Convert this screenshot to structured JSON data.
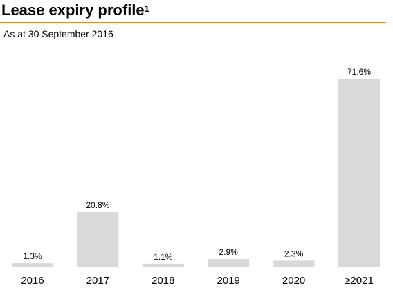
{
  "header": {
    "title": "Lease expiry profile",
    "footnote_marker": "1",
    "subtitle": "As at 30 September 2016",
    "rule_color": "#d98a3a"
  },
  "chart_data": {
    "type": "bar",
    "title": "Lease expiry profile",
    "subtitle": "As at 30 September 2016",
    "categories": [
      "2016",
      "2017",
      "2018",
      "2019",
      "2020",
      "≥2021"
    ],
    "values": [
      1.3,
      20.8,
      1.1,
      2.9,
      2.3,
      71.6
    ],
    "data_labels": [
      "1.3%",
      "20.8%",
      "1.1%",
      "2.9%",
      "2.3%",
      "71.6%"
    ],
    "unit": "%",
    "xlabel": "",
    "ylabel": "",
    "ylim": [
      0,
      100
    ],
    "grid": false,
    "legend": "none",
    "bar_color": "#d9d9d9",
    "axis_color": "#d9d9d9"
  }
}
